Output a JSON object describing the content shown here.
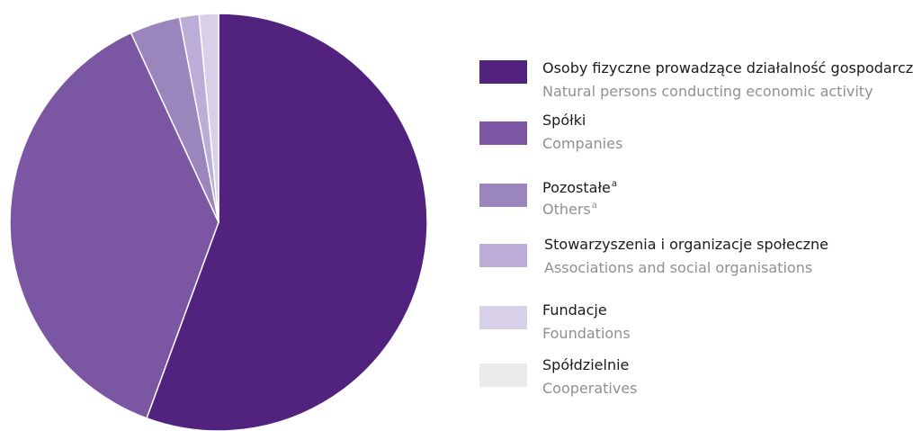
{
  "chart_data": {
    "type": "pie",
    "start_angle": "top",
    "direction": "clockwise",
    "legend_position": "right",
    "slices": [
      {
        "label": "Osoby fizyczne prowadzące działalność gospodarczą",
        "label_en": "Natural persons conducting economic activity",
        "value": 55.6,
        "color": "#51237f",
        "footnote": ""
      },
      {
        "label": "Spółki",
        "label_en": "Companies",
        "value": 37.5,
        "color": "#7b56a2",
        "footnote": ""
      },
      {
        "label": "Pozostałe",
        "label_en": "Others",
        "value": 3.9,
        "color": "#9b85bd",
        "footnote": "a"
      },
      {
        "label": "Stowarzyszenia i organizacje społeczne",
        "label_en": "Associations and social organisations",
        "value": 1.5,
        "color": "#bcadd8",
        "footnote": ""
      },
      {
        "label": "Fundacje",
        "label_en": "Foundations",
        "value": 1.5,
        "color": "#d8d0e8",
        "footnote": ""
      },
      {
        "label": "Spółdzielnie",
        "label_en": "Cooperatives",
        "value": 0.0,
        "color": "#ebebeb",
        "footnote": ""
      }
    ]
  }
}
